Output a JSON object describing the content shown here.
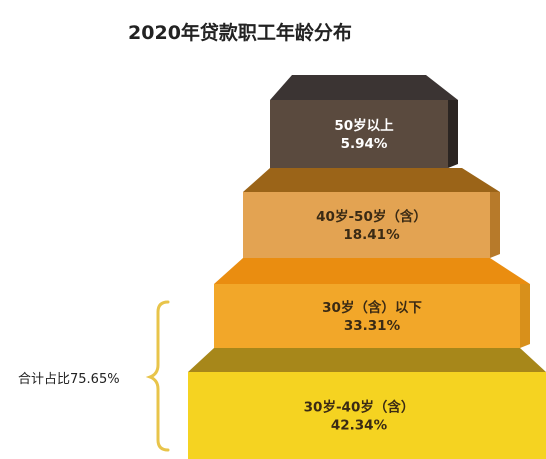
{
  "chart_data": {
    "type": "stacked-pyramid",
    "title": "2020年贷款职工年龄分布",
    "categories": [
      "50岁以上",
      "40岁-50岁（含）",
      "30岁（含）以下",
      "30岁-40岁（含）"
    ],
    "values": [
      5.94,
      18.41,
      33.31,
      42.34
    ],
    "value_labels": [
      "5.94%",
      "18.41%",
      "33.31%",
      "42.34%"
    ],
    "annotation": "合计占比75.65%",
    "colors": {
      "front": [
        "#5a4a3e",
        "#e3a352",
        "#f2a729",
        "#f5d321"
      ],
      "top": [
        "#3b3433",
        "#9b6418",
        "#ea8d10",
        "#a7871a"
      ],
      "side": [
        "#2b2522",
        "#b77a2a",
        "#d8901b",
        "#d9b90e"
      ],
      "label_text": [
        "#ffffff",
        "#3a2a14",
        "#3a2a14",
        "#3a2a14"
      ],
      "bracket": "#e8c44a"
    }
  }
}
